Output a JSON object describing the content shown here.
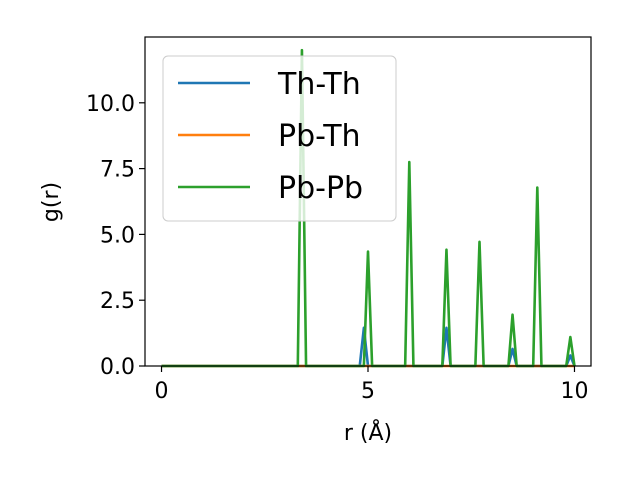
{
  "chart_data": {
    "type": "line",
    "title": "",
    "xlabel": "r (Å)",
    "ylabel": "g(r)",
    "xlim": [
      -0.4,
      10.4
    ],
    "ylim": [
      0.0,
      12.5
    ],
    "xticks": [
      0,
      5,
      10
    ],
    "xtick_labels": [
      "0",
      "5",
      "10"
    ],
    "yticks": [
      0.0,
      2.5,
      5.0,
      7.5,
      10.0
    ],
    "ytick_labels": [
      "0.0",
      "2.5",
      "5.0",
      "7.5",
      "10.0"
    ],
    "grid": false,
    "legend_position": "upper-left",
    "series": [
      {
        "name": "Th-Th",
        "color": "#1f77b4",
        "x": [
          0,
          4.8,
          4.9,
          5.0,
          6.8,
          6.9,
          7.0,
          8.4,
          8.5,
          8.6,
          9.8,
          9.9,
          10.0
        ],
        "y": [
          0,
          0,
          1.45,
          0,
          0,
          1.45,
          0,
          0,
          0.65,
          0,
          0,
          0.4,
          0
        ]
      },
      {
        "name": "Pb-Th",
        "color": "#ff7f0e",
        "x": [
          0,
          10.0
        ],
        "y": [
          0,
          0
        ]
      },
      {
        "name": "Pb-Pb",
        "color": "#2ca02c",
        "x": [
          0,
          3.3,
          3.4,
          3.5,
          4.9,
          5.0,
          5.1,
          5.9,
          6.0,
          6.1,
          6.8,
          6.9,
          7.0,
          7.6,
          7.7,
          7.8,
          8.4,
          8.5,
          8.6,
          9.0,
          9.1,
          9.2,
          9.8,
          9.9,
          10.0
        ],
        "y": [
          0,
          0,
          12.0,
          0,
          0,
          4.35,
          0,
          0,
          7.75,
          0,
          0,
          4.42,
          0,
          0,
          4.72,
          0,
          0,
          1.95,
          0,
          0,
          6.78,
          0,
          0,
          1.1,
          0
        ]
      }
    ]
  }
}
